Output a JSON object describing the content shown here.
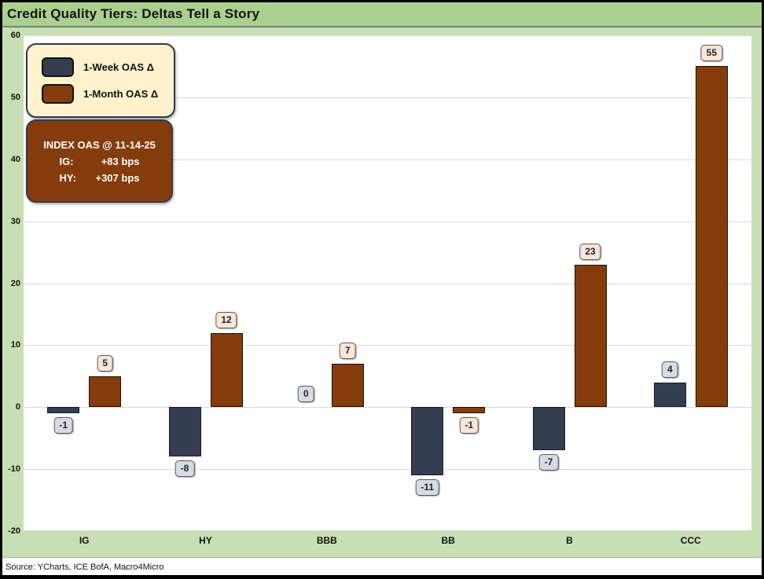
{
  "title": "Credit Quality Tiers: Deltas Tell a Story",
  "source": "Source: YCharts, ICE BofA, Macro4Micro",
  "legend": {
    "week_label": "1-Week OAS Δ",
    "month_label": "1-Month OAS Δ"
  },
  "callout": {
    "title": "INDEX OAS @ 11-14-25",
    "rows": [
      {
        "k": "IG:",
        "v": "+83 bps"
      },
      {
        "k": "HY:",
        "v": "+307 bps"
      }
    ]
  },
  "colors": {
    "title_band": "#A9D08E",
    "chart_background": "#C6E0B4",
    "plot_background": "#FFFFFF",
    "gridline": "#D9D9D9",
    "week_bar": "#333F50",
    "month_bar": "#843C0C",
    "week_label_bg": "#D6DCE4",
    "month_label_bg": "#FBE5D6",
    "legend_bg": "#FFF2CC",
    "callout_bg": "#843C0C"
  },
  "chart_data": {
    "type": "bar",
    "title": "Credit Quality Tiers: Deltas Tell a Story",
    "categories": [
      "IG",
      "HY",
      "BBB",
      "BB",
      "B",
      "CCC"
    ],
    "series": [
      {
        "name": "1-Week OAS Δ",
        "key": "week",
        "values": [
          -1,
          -8,
          0,
          -11,
          -7,
          4
        ]
      },
      {
        "name": "1-Month OAS Δ",
        "key": "month",
        "values": [
          5,
          12,
          7,
          -1,
          23,
          55
        ]
      }
    ],
    "ylim": [
      -20,
      60
    ],
    "yticks": [
      60,
      50,
      40,
      30,
      20,
      10,
      0,
      -10,
      -20
    ],
    "grid": true,
    "legend_position": "top-left",
    "xlabel": "",
    "ylabel": ""
  }
}
